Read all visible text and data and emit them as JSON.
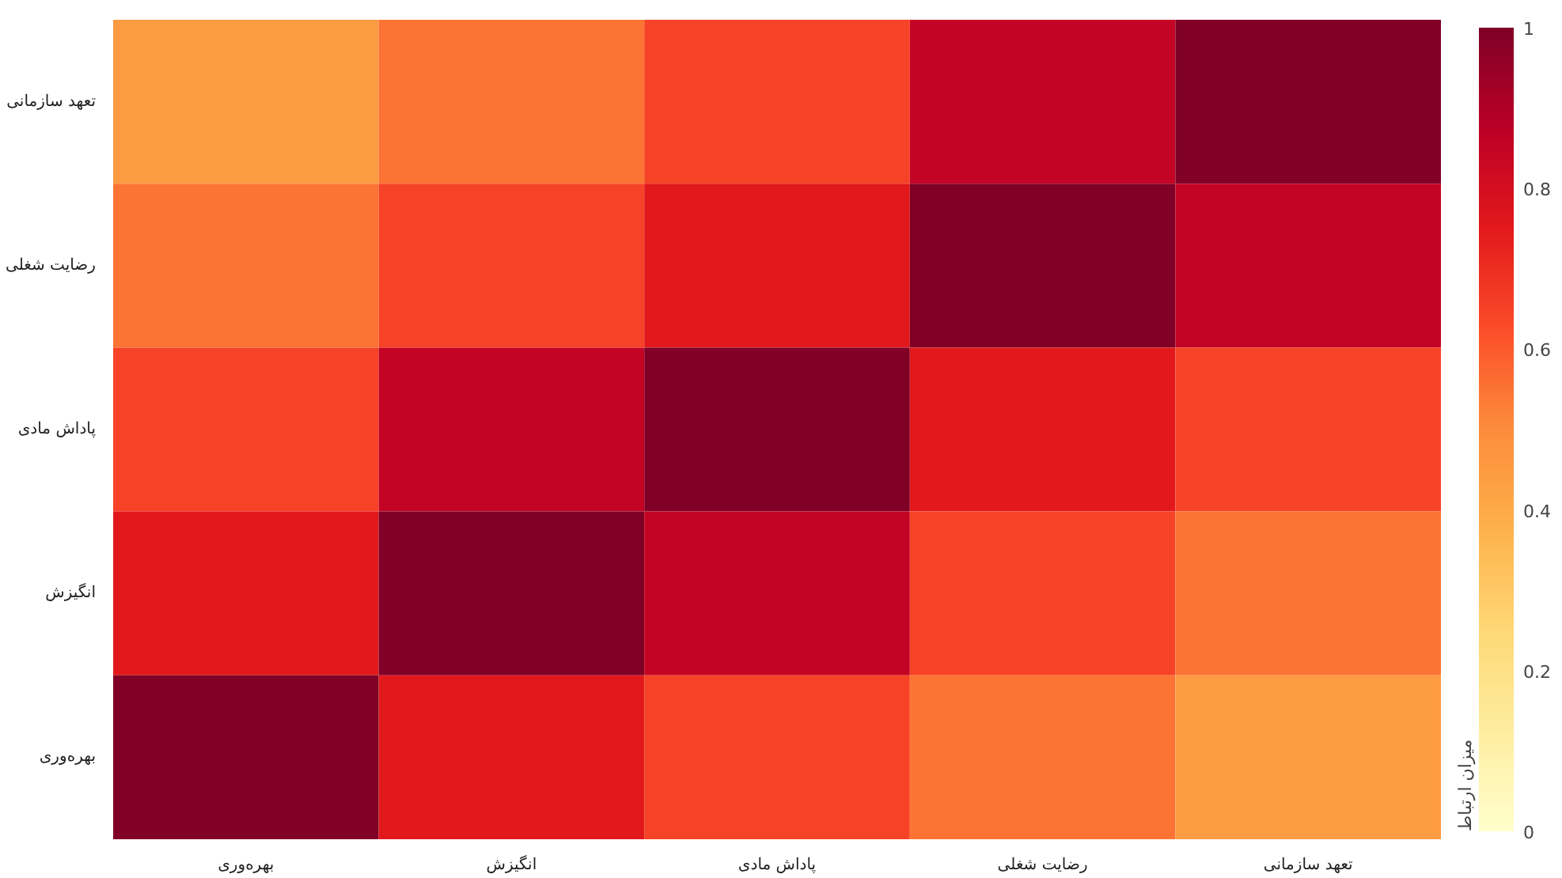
{
  "chart_data": {
    "type": "heatmap",
    "clabel": "میزان ارتباط",
    "categories": [
      "بهره‌وری",
      "انگیزش",
      "پاداش مادی",
      "رضایت شغلی",
      "تعهد سازمانی"
    ],
    "y_categories": [
      "تعهد سازمانی",
      "رضایت شغلی",
      "پاداش مادی",
      "انگیزش",
      "بهره‌وری"
    ],
    "cells": [
      [
        0.45,
        0.55,
        0.65,
        0.85,
        1
      ],
      [
        0.55,
        0.65,
        0.75,
        1,
        0.85
      ],
      [
        0.65,
        0.85,
        1,
        0.75,
        0.65
      ],
      [
        0.75,
        1,
        0.85,
        0.65,
        0.55
      ],
      [
        1,
        0.75,
        0.65,
        0.55,
        0.45
      ]
    ],
    "clim": [
      0,
      1
    ],
    "cticks": [
      0,
      0.2,
      0.4,
      0.6,
      0.8,
      1
    ]
  }
}
